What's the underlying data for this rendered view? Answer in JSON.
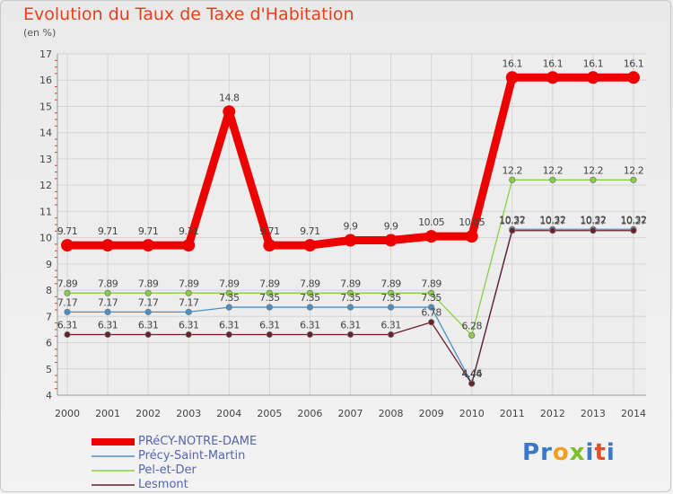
{
  "header": {
    "title": "Evolution du Taux de Taxe d'Habitation",
    "unit": "(en %)"
  },
  "logo_text": "Proxiti",
  "chart_data": {
    "type": "line",
    "title": "Evolution du Taux de Taxe d'Habitation",
    "ylabel": "(en %)",
    "xlabel": "",
    "ylim": [
      4,
      17
    ],
    "y_ticks": [
      4,
      5,
      6,
      7,
      8,
      9,
      10,
      11,
      12,
      13,
      14,
      15,
      16,
      17
    ],
    "categories": [
      "2000",
      "2001",
      "2002",
      "2003",
      "2004",
      "2005",
      "2006",
      "2007",
      "2008",
      "2009",
      "2010",
      "2011",
      "2012",
      "2013",
      "2014"
    ],
    "legend_position": "bottom-left",
    "series": [
      {
        "name": "PRéCY-NOTRE-DAME",
        "color": "#ee0000",
        "values": [
          9.71,
          9.71,
          9.71,
          9.71,
          14.8,
          9.71,
          9.71,
          9.9,
          9.9,
          10.05,
          10.05,
          16.1,
          16.1,
          16.1,
          16.1
        ],
        "labels": [
          "9.71",
          "9.71",
          "9.71",
          "9.71",
          "14.8",
          "9.71",
          "9.71",
          "9.9",
          "9.9",
          "10.05",
          "10.05",
          "16.1",
          "16.1",
          "16.1",
          "16.1"
        ]
      },
      {
        "name": "Précy-Saint-Martin",
        "color": "#4a90c8",
        "values": [
          7.17,
          7.17,
          7.17,
          7.17,
          7.35,
          7.35,
          7.35,
          7.35,
          7.35,
          7.35,
          4.46,
          10.32,
          10.32,
          10.32,
          10.32
        ],
        "labels": [
          "7.17",
          "7.17",
          "7.17",
          "7.17",
          "7.35",
          "7.35",
          "7.35",
          "7.35",
          "7.35",
          "7.35",
          "4.46",
          "10.32",
          "10.32",
          "10.32",
          "10.32"
        ]
      },
      {
        "name": "Pel-et-Der",
        "color": "#88d040",
        "values": [
          7.89,
          7.89,
          7.89,
          7.89,
          7.89,
          7.89,
          7.89,
          7.89,
          7.89,
          7.89,
          6.28,
          12.2,
          12.2,
          12.2,
          12.2
        ],
        "labels": [
          "7.89",
          "7.89",
          "7.89",
          "7.89",
          "7.89",
          "7.89",
          "7.89",
          "7.89",
          "7.89",
          "7.89",
          "6.28",
          "12.2",
          "12.2",
          "12.2",
          "12.2"
        ]
      },
      {
        "name": "Lesmont",
        "color": "#6b1f2a",
        "values": [
          6.31,
          6.31,
          6.31,
          6.31,
          6.31,
          6.31,
          6.31,
          6.31,
          6.31,
          6.78,
          4.44,
          10.27,
          10.27,
          10.27,
          10.27
        ],
        "labels": [
          "6.31",
          "6.31",
          "6.31",
          "6.31",
          "6.31",
          "6.31",
          "6.31",
          "6.31",
          "6.31",
          "6.78",
          "4.44",
          "10.27",
          "10.27",
          "10.27",
          "10.27"
        ]
      }
    ]
  }
}
